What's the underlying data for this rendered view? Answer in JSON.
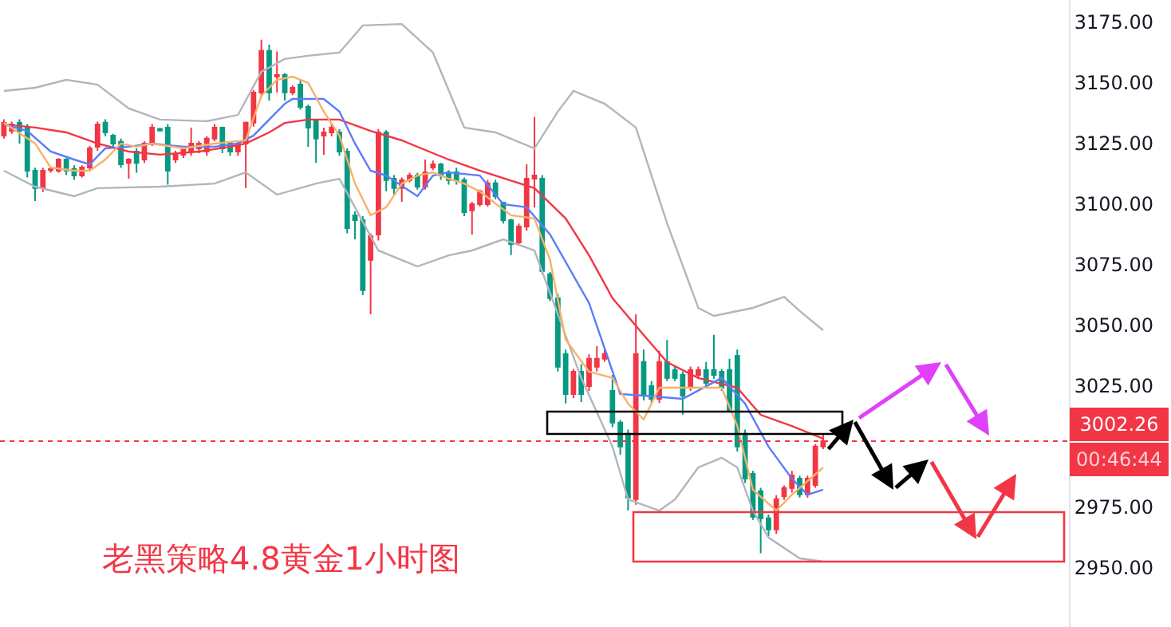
{
  "chart_data": {
    "type": "candlestick",
    "title": "老黑策略4.8黄金1小时图",
    "categories": [
      null,
      null,
      null,
      null,
      null,
      null,
      null,
      null,
      null,
      null,
      null,
      null,
      null,
      null,
      null,
      null,
      null,
      null,
      null,
      null,
      null,
      null,
      null,
      null,
      null,
      null,
      null,
      null,
      null,
      null,
      null,
      null,
      null,
      null,
      null,
      null,
      null,
      null,
      null,
      null,
      null,
      null,
      null,
      null,
      null,
      null,
      null,
      null,
      null,
      null,
      null,
      null,
      null,
      null,
      null,
      null,
      null,
      null,
      null,
      null,
      null,
      null,
      null,
      null,
      null,
      null,
      null,
      null,
      null,
      null,
      null,
      null,
      null,
      null,
      null,
      null,
      null,
      null,
      null,
      null,
      null,
      null,
      null,
      null,
      null,
      null,
      null,
      null,
      null,
      null,
      null,
      null,
      null,
      null,
      null,
      null,
      null,
      null,
      null,
      null,
      null,
      null,
      null,
      null,
      null,
      null,
      null,
      null,
      null,
      null,
      null,
      null,
      null,
      null,
      null,
      null,
      null,
      null,
      null,
      null,
      null,
      null,
      null,
      null,
      null,
      null,
      null,
      null,
      null,
      null,
      null,
      null,
      null,
      null,
      null,
      null,
      null
    ],
    "ohlc": [
      [
        3128.3,
        3135,
        3127,
        3133.5
      ],
      [
        3130.2,
        3134,
        3129,
        3132.9
      ],
      [
        3133.5,
        3135,
        3125,
        3130.2
      ],
      [
        3131.6,
        3133,
        3111,
        3113.8
      ],
      [
        3113.8,
        3115,
        3101.3,
        3106.6
      ],
      [
        3106.6,
        3115,
        3105,
        3113.8
      ],
      [
        3114,
        3115,
        3113,
        3114.5
      ],
      [
        3113.8,
        3119,
        3113,
        3118.4
      ],
      [
        3118.4,
        3119,
        3112,
        3113.8
      ],
      [
        3114.5,
        3116,
        3110,
        3111.8
      ],
      [
        3111.8,
        3116,
        3111,
        3115.1
      ],
      [
        3115.1,
        3124,
        3114,
        3123
      ],
      [
        3123.7,
        3134,
        3122,
        3132.9
      ],
      [
        3133.6,
        3135,
        3128,
        3129.6
      ],
      [
        3128.3,
        3129,
        3123,
        3125
      ],
      [
        3125.7,
        3127,
        3115,
        3116.4
      ],
      [
        3117,
        3119,
        3110.5,
        3118.4
      ],
      [
        3121.7,
        3123,
        3113,
        3117
      ],
      [
        3118.4,
        3126,
        3117,
        3125
      ],
      [
        3125,
        3133,
        3124,
        3131.6
      ],
      [
        3131,
        3131.5,
        3130,
        3130.3
      ],
      [
        3131.6,
        3133,
        3108,
        3113.8
      ],
      [
        3118.4,
        3122,
        3117,
        3120.4
      ],
      [
        3120.4,
        3124,
        3119,
        3123
      ],
      [
        3121.7,
        3131.6,
        3120,
        3125
      ],
      [
        3123,
        3126,
        3121,
        3125
      ],
      [
        3121.7,
        3128,
        3120,
        3127
      ],
      [
        3127,
        3133,
        3126,
        3131.6
      ],
      [
        3131.6,
        3132,
        3121,
        3123
      ],
      [
        3125,
        3126,
        3120,
        3121.7
      ],
      [
        3121.7,
        3126,
        3120,
        3125
      ],
      [
        3125,
        3134,
        3106.6,
        3133.6
      ],
      [
        3133.6,
        3147,
        3132,
        3146
      ],
      [
        3146,
        3167.8,
        3144,
        3163.2
      ],
      [
        3163.2,
        3165.8,
        3142.7,
        3146
      ],
      [
        3152.6,
        3163,
        3146,
        3153.3
      ],
      [
        3153.3,
        3154,
        3142.7,
        3146
      ],
      [
        3146,
        3149,
        3145,
        3148
      ],
      [
        3149.3,
        3151,
        3139,
        3140.1
      ],
      [
        3140.1,
        3141,
        3123.7,
        3131.6
      ],
      [
        3134.2,
        3135,
        3117.1,
        3127
      ],
      [
        3128.3,
        3131.6,
        3120.4,
        3129.6
      ],
      [
        3129.6,
        3133,
        3128,
        3131.6
      ],
      [
        3129.6,
        3131,
        3120,
        3121.7
      ],
      [
        3121.7,
        3123,
        3088,
        3090.1
      ],
      [
        3095.4,
        3097,
        3085.5,
        3093.4
      ],
      [
        3093.4,
        3095,
        3062.5,
        3064.5
      ],
      [
        3077,
        3088,
        3054.6,
        3086.8
      ],
      [
        3087.5,
        3131,
        3085,
        3129.6
      ],
      [
        3129.6,
        3130.5,
        3105.3,
        3109.9
      ],
      [
        3110.5,
        3112,
        3104,
        3106.6
      ],
      [
        3106.6,
        3111,
        3101,
        3109.9
      ],
      [
        3109.9,
        3113,
        3109,
        3111.8
      ],
      [
        3111.8,
        3113,
        3106,
        3107.2
      ],
      [
        3107.2,
        3118.4,
        3106,
        3113.1
      ],
      [
        3115.1,
        3118,
        3114,
        3116.4
      ],
      [
        3116.4,
        3117,
        3110,
        3111.8
      ],
      [
        3113.1,
        3114,
        3108,
        3109.9
      ],
      [
        3113.1,
        3115,
        3108,
        3109.9
      ],
      [
        3109.9,
        3111,
        3095,
        3096.7
      ],
      [
        3097.4,
        3101,
        3087.5,
        3100
      ],
      [
        3100,
        3106,
        3099,
        3105.3
      ],
      [
        3100,
        3110,
        3099,
        3108.6
      ],
      [
        3108.6,
        3110,
        3102,
        3103.3
      ],
      [
        3100.6,
        3101,
        3092,
        3093.4
      ],
      [
        3093.4,
        3094,
        3079,
        3083.5
      ],
      [
        3084.2,
        3092,
        3083,
        3090.8
      ],
      [
        3090.8,
        3116.4,
        3089,
        3110.5
      ],
      [
        3110.5,
        3136,
        3098.7,
        3111.8
      ],
      [
        3110.5,
        3112,
        3071,
        3072.4
      ],
      [
        3071.1,
        3072,
        3060,
        3061.2
      ],
      [
        3061.2,
        3063,
        3031,
        3032.9
      ],
      [
        3038.2,
        3040,
        3017.8,
        3021.7
      ],
      [
        3021.7,
        3032,
        3020,
        3030.9
      ],
      [
        3030.9,
        3034,
        3018.4,
        3021.7
      ],
      [
        3025,
        3038,
        3023,
        3036.2
      ],
      [
        3032.9,
        3041.4,
        3031,
        3036.2
      ],
      [
        3036.2,
        3040,
        3035,
        3038.2
      ],
      [
        3023,
        3029.6,
        3008,
        3009.9
      ],
      [
        3009.9,
        3011,
        2996.7,
        3000
      ],
      [
        3005.3,
        3007,
        2973.7,
        2979
      ],
      [
        2978.3,
        3054.6,
        2976,
        3038.2
      ],
      [
        3034.9,
        3040,
        3019,
        3021
      ],
      [
        3025,
        3027,
        3018,
        3019.7
      ],
      [
        3019.7,
        3039.5,
        3018,
        3034.9
      ],
      [
        3034.9,
        3044,
        3027,
        3028.3
      ],
      [
        3031.6,
        3033,
        3027,
        3028.3
      ],
      [
        3029.6,
        3031,
        3013.2,
        3021
      ],
      [
        3024.3,
        3033,
        3023,
        3031.6
      ],
      [
        3029.6,
        3033,
        3028,
        3031.6
      ],
      [
        3031.6,
        3034.9,
        3025,
        3026.3
      ],
      [
        3031.6,
        3046.1,
        3028,
        3029.6
      ],
      [
        3030.9,
        3032,
        3023,
        3024.3
      ],
      [
        3031.6,
        3036.2,
        3014,
        3015.1
      ],
      [
        3037.5,
        3040,
        2998,
        3000
      ],
      [
        3005.3,
        3007,
        2985,
        2986.8
      ],
      [
        2988.8,
        2990,
        2969.8,
        2971.1
      ],
      [
        2981.6,
        2983,
        2956,
        2970.4
      ],
      [
        2970.4,
        2972,
        2963,
        2965.8
      ],
      [
        2965.8,
        2980,
        2964,
        2978.3
      ],
      [
        2979.6,
        2984,
        2978,
        2982.9
      ],
      [
        2982.9,
        2990,
        2981,
        2988.1
      ],
      [
        2986.8,
        2988,
        2979,
        2980.3
      ],
      [
        2980.3,
        2988,
        2979,
        2986.8
      ],
      [
        2984.2,
        3001,
        2983,
        3000
      ],
      [
        3000,
        3005.3,
        2999,
        3002.26
      ],
      null,
      null,
      null,
      null,
      null,
      null,
      null,
      null,
      null,
      null,
      null,
      null,
      null,
      null,
      null,
      null,
      null,
      null,
      null,
      null,
      null,
      null,
      null,
      null,
      null,
      null,
      null,
      null,
      null,
      null,
      null
    ],
    "colors": [
      "#f23645",
      "#f23645",
      "#089981",
      "#089981",
      "#089981",
      "#f23645",
      "#f23645",
      "#f23645",
      "#089981",
      "#089981",
      "#f23645",
      "#f23645",
      "#f23645",
      "#089981",
      "#089981",
      "#089981",
      "#f23645",
      "#089981",
      "#f23645",
      "#f23645",
      "#089981",
      "#089981",
      "#f23645",
      "#f23645",
      "#f23645",
      "#f23645",
      "#f23645",
      "#f23645",
      "#089981",
      "#089981",
      "#f23645",
      "#f23645",
      "#f23645",
      "#f23645",
      "#089981",
      "#f23645",
      "#089981",
      "#f23645",
      "#089981",
      "#089981",
      "#089981",
      "#f23645",
      "#f23645",
      "#089981",
      "#089981",
      "#089981",
      "#089981",
      "#f23645",
      "#f23645",
      "#089981",
      "#089981",
      "#f23645",
      "#f23645",
      "#089981",
      "#f23645",
      "#f23645",
      "#089981",
      "#089981",
      "#089981",
      "#089981",
      "#f23645",
      "#f23645",
      "#f23645",
      "#089981",
      "#089981",
      "#089981",
      "#f23645",
      "#f23645",
      "#f23645",
      "#089981",
      "#089981",
      "#089981",
      "#089981",
      "#f23645",
      "#089981",
      "#f23645",
      "#f23645",
      "#f23645",
      "#089981",
      "#089981",
      "#089981",
      "#f23645",
      "#089981",
      "#089981",
      "#f23645",
      "#089981",
      "#089981",
      "#089981",
      "#f23645",
      "#f23645",
      "#089981",
      "#089981",
      "#089981",
      "#089981",
      "#089981",
      "#089981",
      "#089981",
      "#089981",
      "#089981",
      "#f23645",
      "#f23645",
      "#f23645",
      "#089981",
      "#f23645",
      "#f23645",
      "#f23645",
      null,
      null,
      null,
      null,
      null,
      null,
      null,
      null,
      null,
      null,
      null,
      null,
      null,
      null,
      null,
      null,
      null,
      null,
      null,
      null,
      null,
      null,
      null,
      null,
      null,
      null,
      null,
      null,
      null,
      null,
      null
    ],
    "series": [
      {
        "type": "line",
        "color": "#b2b5be",
        "values": [
          3146.7,
          null,
          null,
          null,
          3148,
          null,
          null,
          null,
          3151.3,
          null,
          null,
          null,
          3149.3,
          null,
          null,
          null,
          3139.5,
          null,
          null,
          null,
          3134.9,
          null,
          null,
          null,
          null,
          null,
          3134.2,
          null,
          null,
          null,
          3136.8,
          null,
          null,
          3154.6,
          null,
          null,
          3159.9,
          null,
          null,
          3161.2,
          null,
          null,
          null,
          3162.5,
          null,
          null,
          3173.7,
          null,
          null,
          null,
          null,
          3174.3,
          null,
          null,
          null,
          3162.5,
          null,
          null,
          null,
          3131.6,
          null,
          null,
          null,
          3129.6,
          null,
          null,
          null,
          null,
          3123,
          null,
          null,
          3138.2,
          null,
          3146.7,
          null,
          null,
          null,
          3141.4,
          null,
          null,
          null,
          3131.6,
          null,
          null,
          null,
          3092.1,
          null,
          null,
          null,
          3057.2,
          null,
          3053.9,
          null,
          null,
          null,
          null,
          3057.2,
          null,
          null,
          null,
          3061.8,
          null,
          3055.9,
          null,
          null,
          3048,
          null,
          null,
          null,
          null,
          null,
          null,
          null,
          null,
          null,
          null,
          null,
          null,
          null,
          null,
          null,
          null,
          null,
          null,
          null,
          null,
          null,
          null,
          null,
          null,
          null,
          null,
          null,
          null,
          null,
          null,
          null
        ]
      },
      {
        "type": "line",
        "color": "#b2b5be",
        "values": [
          3113.8,
          null,
          null,
          null,
          3107.2,
          null,
          null,
          null,
          null,
          3103.3,
          null,
          null,
          3106.6,
          null,
          null,
          null,
          null,
          null,
          null,
          null,
          3107.2,
          null,
          null,
          null,
          null,
          null,
          null,
          3108.5,
          null,
          null,
          null,
          3113.1,
          null,
          null,
          null,
          3103.9,
          null,
          null,
          null,
          null,
          3108.5,
          null,
          null,
          3110.5,
          null,
          null,
          null,
          null,
          3080.9,
          null,
          null,
          null,
          null,
          3074.3,
          null,
          null,
          null,
          3078.9,
          null,
          null,
          3080.9,
          null,
          null,
          null,
          3085.5,
          null,
          null,
          null,
          3080.9,
          null,
          null,
          null,
          null,
          null,
          3028.3,
          null,
          null,
          null,
          3000,
          null,
          2978.2,
          null,
          null,
          null,
          2973.6,
          null,
          2978.2,
          null,
          null,
          2991.4,
          null,
          null,
          2995.4,
          null,
          2991.4,
          null,
          2973.6,
          null,
          2962.5,
          null,
          null,
          null,
          2953.9,
          null,
          null,
          2952.6,
          null,
          null,
          null,
          null,
          null,
          null,
          null,
          null,
          null,
          null,
          null,
          null,
          null,
          null,
          null,
          null,
          null,
          null,
          null,
          null,
          null,
          null,
          null,
          null,
          null,
          null,
          null,
          null,
          null,
          null,
          null
        ]
      },
      {
        "type": "line",
        "color": "#f23645",
        "values": [
          3132.9,
          null,
          null,
          null,
          3131.6,
          null,
          null,
          null,
          3129.6,
          null,
          null,
          null,
          3125,
          null,
          null,
          null,
          3121.7,
          null,
          null,
          null,
          3120.4,
          null,
          null,
          null,
          null,
          3121.7,
          null,
          null,
          null,
          3123.7,
          null,
          3125,
          null,
          null,
          3129.6,
          null,
          3133.5,
          null,
          null,
          3134.9,
          null,
          null,
          null,
          3134.9,
          null,
          null,
          null,
          3130.2,
          null,
          null,
          null,
          3126.3,
          null,
          null,
          null,
          null,
          null,
          3118.4,
          null,
          null,
          null,
          3113.8,
          null,
          null,
          null,
          null,
          null,
          null,
          3106.6,
          null,
          null,
          null,
          3094.1,
          null,
          null,
          3078.9,
          null,
          null,
          3061.2,
          null,
          null,
          null,
          3046,
          null,
          null,
          3034.8,
          null,
          null,
          null,
          3028.3,
          null,
          null,
          null,
          null,
          3024.3,
          null,
          null,
          3013.1,
          null,
          null,
          null,
          3008.5,
          null,
          null,
          null,
          3003.3,
          null,
          null,
          null,
          null,
          null,
          null,
          null,
          null,
          null,
          null,
          null,
          null,
          null,
          null,
          null,
          null,
          null,
          null,
          null,
          null,
          null,
          null,
          null,
          null,
          null,
          null,
          null,
          null,
          null,
          null,
          null
        ]
      },
      {
        "type": "line",
        "color": "#5b7cfa",
        "values": [
          3132.9,
          null,
          null,
          3130.2,
          null,
          null,
          3121.7,
          null,
          null,
          3118.4,
          null,
          3116.4,
          null,
          3123,
          null,
          null,
          3123.7,
          null,
          null,
          3125,
          null,
          null,
          null,
          3123.7,
          null,
          null,
          null,
          3123.7,
          null,
          null,
          3125,
          null,
          3128.3,
          null,
          3134.9,
          null,
          3141.4,
          3143.4,
          null,
          null,
          null,
          3143.4,
          null,
          3138.2,
          null,
          3125,
          null,
          3113.8,
          null,
          3111.8,
          null,
          null,
          null,
          3103.3,
          null,
          3111.8,
          null,
          3113.1,
          null,
          null,
          null,
          3111.8,
          null,
          null,
          3100,
          null,
          null,
          3098.7,
          null,
          null,
          3087.5,
          null,
          null,
          null,
          null,
          3059.2,
          null,
          null,
          null,
          3021.7,
          null,
          null,
          3021,
          null,
          null,
          null,
          null,
          3019.7,
          null,
          null,
          null,
          null,
          3028.3,
          null,
          null,
          3017.7,
          null,
          null,
          3000,
          null,
          null,
          2986.8,
          null,
          2980.2,
          null,
          2982.2,
          null,
          null,
          null,
          null,
          null,
          null,
          null,
          null,
          null,
          null,
          null,
          null,
          null,
          null,
          null,
          null,
          null,
          null,
          null,
          null,
          null,
          null,
          null,
          null,
          null,
          null,
          null,
          null,
          null,
          null,
          null
        ]
      },
      {
        "type": "line",
        "color": "#f7b26a",
        "values": [
          3133.5,
          null,
          null,
          null,
          3125,
          null,
          3115.1,
          null,
          null,
          3113.8,
          null,
          3113.8,
          null,
          3118.4,
          null,
          3125,
          null,
          3123.7,
          null,
          3125,
          null,
          null,
          null,
          3123,
          null,
          null,
          null,
          3125,
          null,
          null,
          null,
          3126.3,
          null,
          3144.7,
          null,
          3151.3,
          null,
          3152.6,
          null,
          3150,
          null,
          3138.2,
          null,
          3128.3,
          null,
          3108.5,
          null,
          3095.4,
          null,
          3098.7,
          null,
          3108.5,
          null,
          3111.8,
          null,
          3113.1,
          null,
          3110.5,
          null,
          3108.5,
          null,
          3105.2,
          null,
          null,
          null,
          3095.4,
          null,
          null,
          3094.1,
          null,
          3077,
          null,
          3044.1,
          null,
          null,
          3030.9,
          null,
          null,
          3028.3,
          null,
          3017.7,
          null,
          3011.2,
          null,
          3024.3,
          null,
          null,
          3024.3,
          null,
          null,
          null,
          null,
          3024.3,
          null,
          3008.5,
          null,
          2982.2,
          null,
          null,
          2973.6,
          null,
          2980.2,
          null,
          null,
          null,
          2991.4,
          null,
          null,
          null,
          null,
          null,
          null,
          null,
          null,
          null,
          null,
          null,
          null,
          null,
          null,
          null,
          null,
          null,
          null,
          null,
          null,
          null,
          null,
          null,
          null,
          null,
          null,
          null,
          null,
          null,
          null,
          null
        ]
      }
    ],
    "ylim": [
      2925.6,
      3184.2
    ],
    "yticks": [
      {
        "value": 2950,
        "label": "2950.00"
      },
      {
        "value": 2975,
        "label": "2975.00"
      },
      {
        "value": 3025,
        "label": "3025.00"
      },
      {
        "value": 3050,
        "label": "3050.00"
      },
      {
        "value": 3075,
        "label": "3075.00"
      },
      {
        "value": 3100,
        "label": "3100.00"
      },
      {
        "value": 3125,
        "label": "3125.00"
      },
      {
        "value": 3150,
        "label": "3150.00"
      },
      {
        "value": 3175,
        "label": "3175.00"
      }
    ],
    "ref_lines": [
      {
        "axis": "y",
        "value": 3002.26,
        "label": "3002.26",
        "color": "#f23645",
        "line_style": "dotted"
      }
    ],
    "annotations": [
      "00:46:44"
    ],
    "tick_labels": "y"
  }
}
